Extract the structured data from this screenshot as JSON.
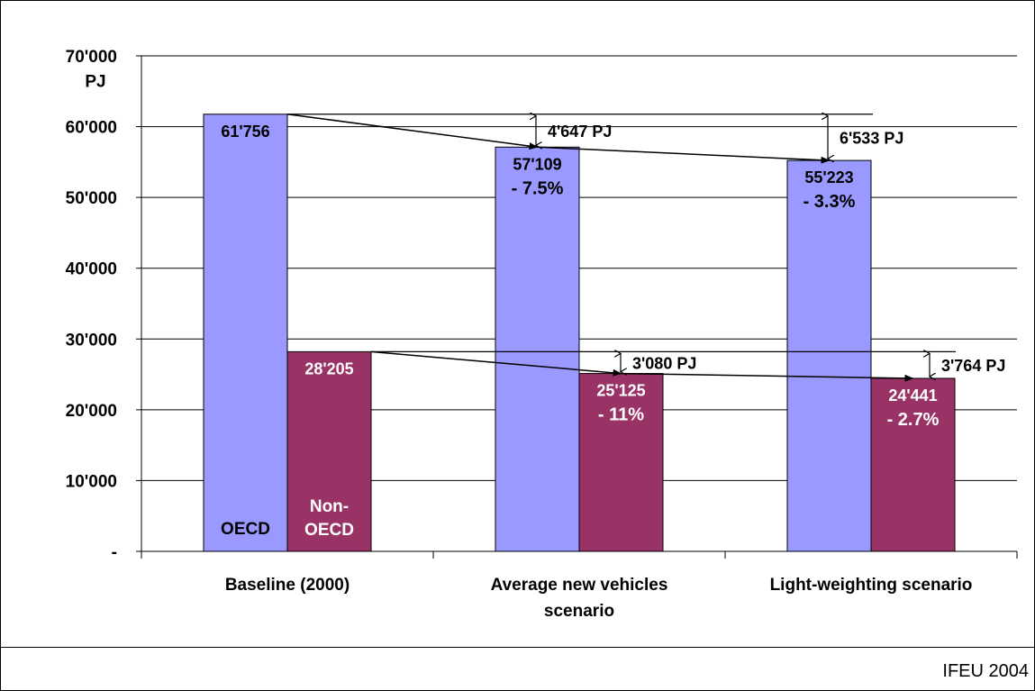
{
  "chart_data": {
    "type": "bar",
    "title": "",
    "xlabel": "",
    "ylabel": "PJ",
    "ylim": [
      0,
      70000
    ],
    "grid": true,
    "yticks": [
      {
        "value": 0,
        "label": "-"
      },
      {
        "value": 10000,
        "label": "10'000"
      },
      {
        "value": 20000,
        "label": "20'000"
      },
      {
        "value": 30000,
        "label": "30'000"
      },
      {
        "value": 40000,
        "label": "40'000"
      },
      {
        "value": 50000,
        "label": "50'000"
      },
      {
        "value": 60000,
        "label": "60'000"
      },
      {
        "value": 70000,
        "label": "70'000"
      }
    ],
    "categories": [
      [
        "Baseline (2000)"
      ],
      [
        "Average new vehicles",
        "scenario"
      ],
      [
        "Light-weighting scenario"
      ]
    ],
    "series": [
      {
        "name": "OECD",
        "color": "#9999ff",
        "values": [
          61756,
          57109,
          55223
        ],
        "value_labels": [
          "61'756",
          "57'109",
          "55'223"
        ],
        "change_labels": [
          "",
          "- 7.5%",
          "- 3.3%"
        ]
      },
      {
        "name": "Non-OECD",
        "color": "#993366",
        "values": [
          28205,
          25125,
          24441
        ],
        "value_labels": [
          "28'205",
          "25'125",
          "24'441"
        ],
        "change_labels": [
          "",
          "- 11%",
          "- 2.7%"
        ]
      }
    ],
    "legend_in_bars": {
      "series_0": [
        "OECD"
      ],
      "series_1": [
        "Non-",
        "OECD"
      ]
    },
    "savings": {
      "series_0": [
        "",
        "4'647 PJ",
        "6'533 PJ"
      ],
      "series_1": [
        "",
        "3'080 PJ",
        "3'764 PJ"
      ]
    }
  },
  "footer": {
    "credit": "IFEU 2004"
  }
}
